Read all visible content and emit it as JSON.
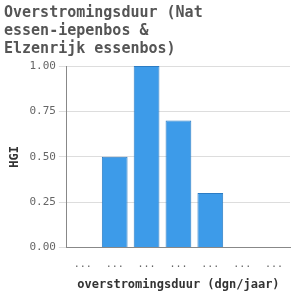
{
  "chart_data": {
    "type": "bar",
    "title": [
      "Overstromingsduur (Nat",
      "essen-iepenbos &",
      "Elzenrijk essenbos)"
    ],
    "x_label": "overstromingsduur (dgn/jaar)",
    "y_label": "HGI",
    "categories": [
      "...",
      "...",
      "...",
      "...",
      "...",
      "...",
      "..."
    ],
    "values": [
      0,
      0.5,
      1.0,
      0.7,
      0.3,
      0,
      0
    ],
    "color": "#3d9be9",
    "ylim": [
      0,
      1
    ],
    "yticks": [
      {
        "value": 0,
        "label": "0.00"
      },
      {
        "value": 0.25,
        "label": "0.25"
      },
      {
        "value": 0.5,
        "label": "0.50"
      },
      {
        "value": 0.75,
        "label": "0.75"
      },
      {
        "value": 1,
        "label": "1.00"
      }
    ],
    "grid": true
  }
}
